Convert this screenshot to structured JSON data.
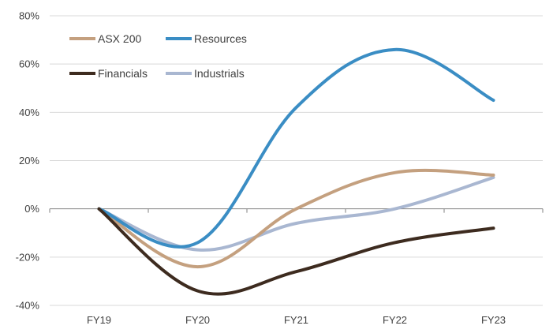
{
  "chart_data": {
    "type": "line",
    "title": "",
    "xlabel": "",
    "ylabel": "",
    "categories": [
      "FY19",
      "FY20",
      "FY21",
      "FY22",
      "FY23"
    ],
    "ylim": [
      -40,
      80
    ],
    "yticks": [
      -40,
      -20,
      0,
      20,
      40,
      60,
      80
    ],
    "ytick_labels": [
      "-40%",
      "-20%",
      "0%",
      "20%",
      "40%",
      "60%",
      "80%"
    ],
    "grid": true,
    "legend_position": "top-left",
    "series": [
      {
        "name": "ASX 200",
        "color": "#C4A07F",
        "values": [
          0,
          -24,
          0,
          15,
          14
        ]
      },
      {
        "name": "Resources",
        "color": "#3A8DC4",
        "values": [
          0,
          -14,
          42,
          66,
          45
        ]
      },
      {
        "name": "Financials",
        "color": "#3D2B1F",
        "values": [
          0,
          -34,
          -26,
          -14,
          -8
        ]
      },
      {
        "name": "Industrials",
        "color": "#A9B7D1",
        "values": [
          0,
          -17,
          -6,
          0,
          13
        ]
      }
    ]
  }
}
